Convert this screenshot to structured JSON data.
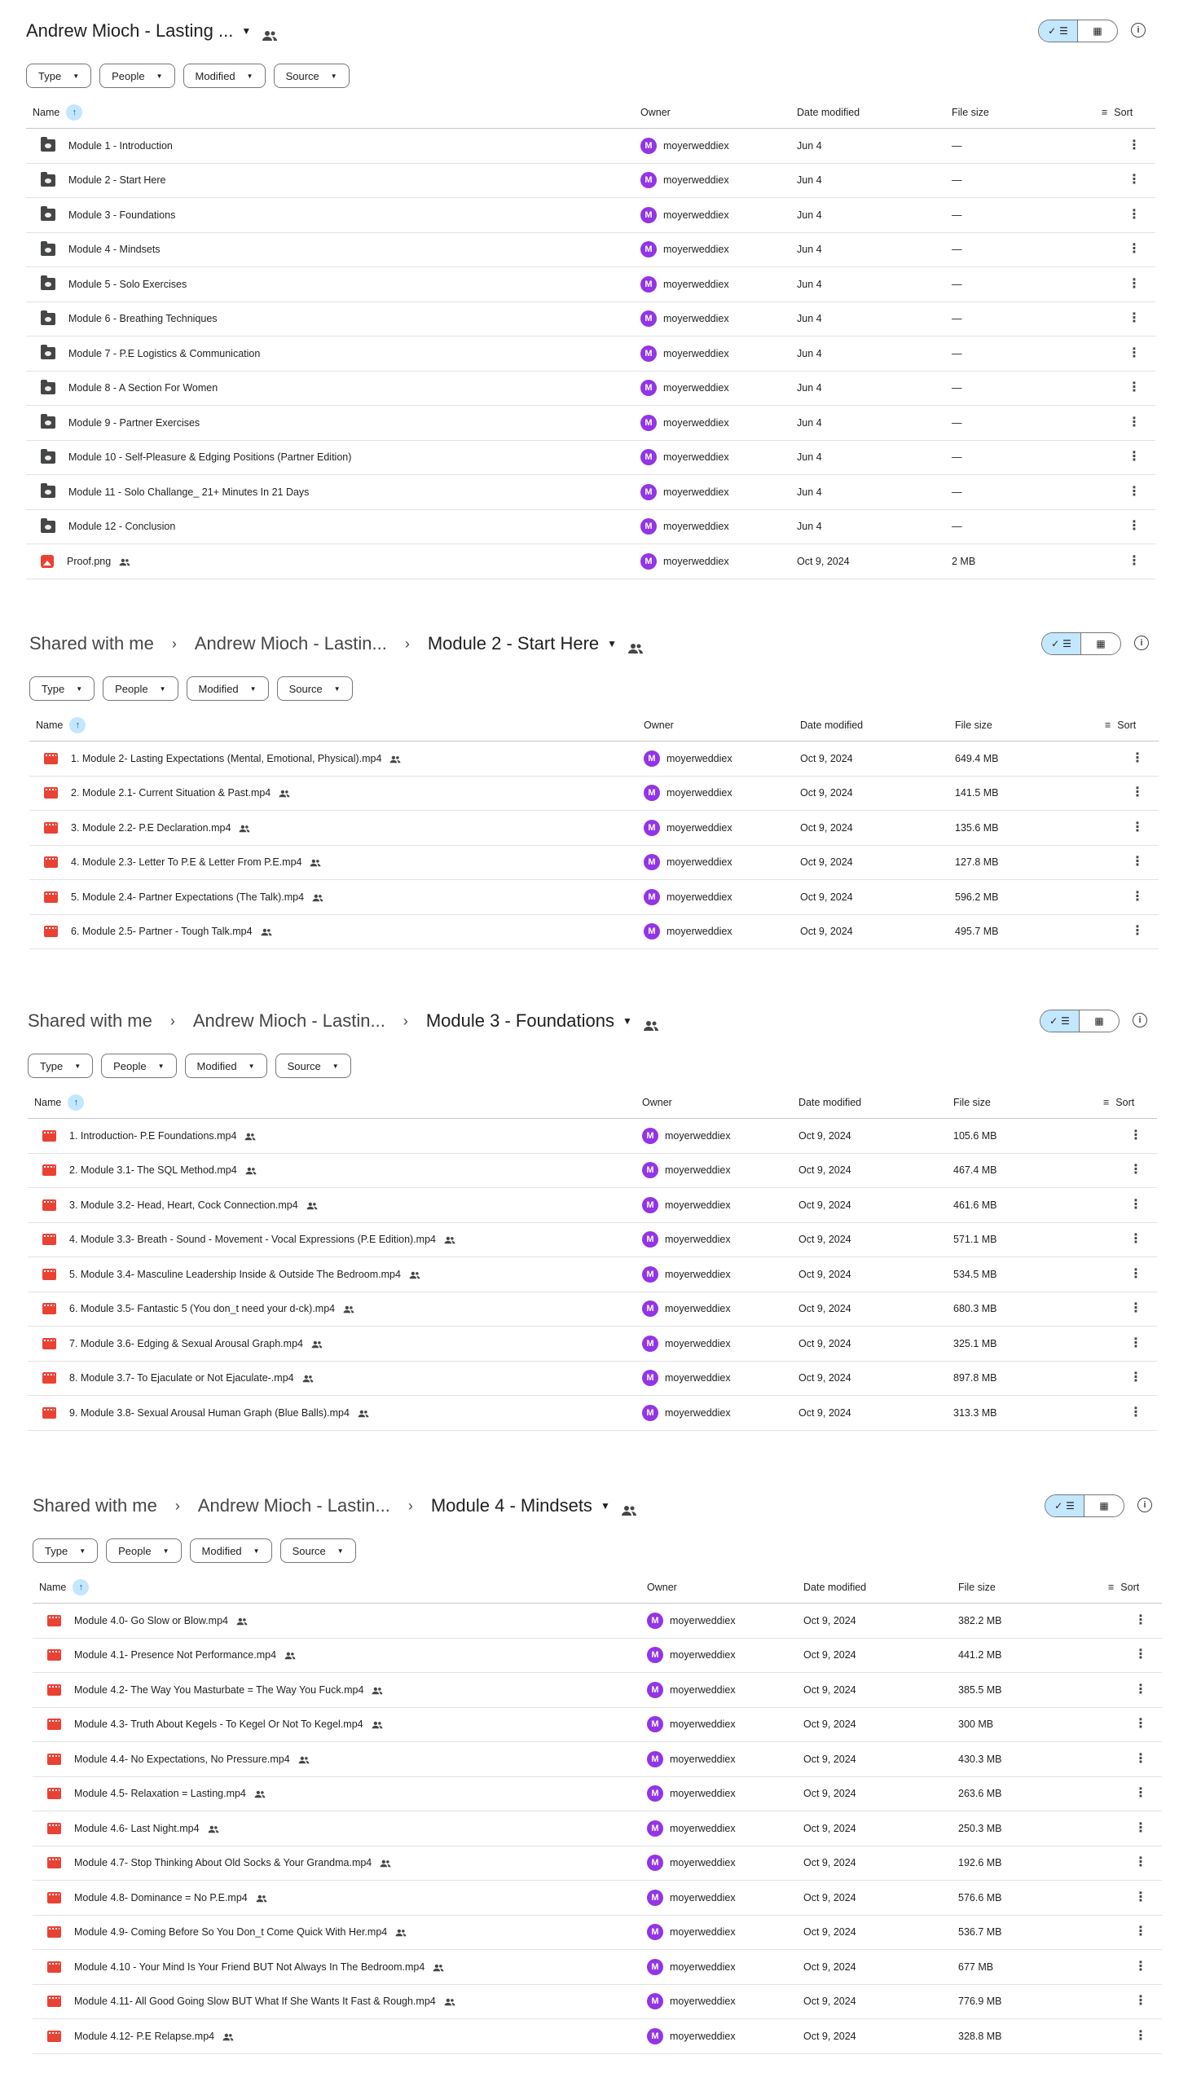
{
  "colors": {
    "accent": "#c2e7ff",
    "avatar": "#9334e6",
    "video": "#e94235",
    "folder": "#444746"
  },
  "filters": [
    "Type",
    "People",
    "Modified",
    "Source"
  ],
  "columns": {
    "name": "Name",
    "owner": "Owner",
    "date": "Date modified",
    "size": "File size",
    "sort": "Sort"
  },
  "panels": [
    {
      "breadcrumb": [],
      "current": "Andrew Mioch - Lasting ...",
      "rows": [
        {
          "icon": "folder-icon",
          "name": "Module 1 - Introduction",
          "shared": false,
          "owner": "moyerweddiex",
          "date": "Jun 4",
          "size": "—"
        },
        {
          "icon": "folder-icon",
          "name": "Module 2 - Start Here",
          "shared": false,
          "owner": "moyerweddiex",
          "date": "Jun 4",
          "size": "—"
        },
        {
          "icon": "folder-icon",
          "name": "Module 3 - Foundations",
          "shared": false,
          "owner": "moyerweddiex",
          "date": "Jun 4",
          "size": "—"
        },
        {
          "icon": "folder-icon",
          "name": "Module 4 - Mindsets",
          "shared": false,
          "owner": "moyerweddiex",
          "date": "Jun 4",
          "size": "—"
        },
        {
          "icon": "folder-icon",
          "name": "Module 5 - Solo Exercises",
          "shared": false,
          "owner": "moyerweddiex",
          "date": "Jun 4",
          "size": "—"
        },
        {
          "icon": "folder-icon",
          "name": "Module 6 - Breathing Techniques",
          "shared": false,
          "owner": "moyerweddiex",
          "date": "Jun 4",
          "size": "—"
        },
        {
          "icon": "folder-icon",
          "name": "Module 7 - P.E Logistics & Communication",
          "shared": false,
          "owner": "moyerweddiex",
          "date": "Jun 4",
          "size": "—"
        },
        {
          "icon": "folder-icon",
          "name": "Module 8 - A Section For Women",
          "shared": false,
          "owner": "moyerweddiex",
          "date": "Jun 4",
          "size": "—"
        },
        {
          "icon": "folder-icon",
          "name": "Module 9 - Partner Exercises",
          "shared": false,
          "owner": "moyerweddiex",
          "date": "Jun 4",
          "size": "—"
        },
        {
          "icon": "folder-icon",
          "name": "Module 10 - Self-Pleasure & Edging Positions (Partner Edition)",
          "shared": false,
          "owner": "moyerweddiex",
          "date": "Jun 4",
          "size": "—"
        },
        {
          "icon": "folder-icon",
          "name": "Module 11 - Solo Challange_ 21+ Minutes In 21 Days",
          "shared": false,
          "owner": "moyerweddiex",
          "date": "Jun 4",
          "size": "—"
        },
        {
          "icon": "folder-icon",
          "name": "Module 12 - Conclusion",
          "shared": false,
          "owner": "moyerweddiex",
          "date": "Jun 4",
          "size": "—"
        },
        {
          "icon": "image-icon",
          "name": "Proof.png",
          "shared": true,
          "owner": "moyerweddiex",
          "date": "Oct 9, 2024",
          "size": "2 MB"
        }
      ]
    },
    {
      "breadcrumb": [
        "Shared with me",
        "Andrew Mioch - Lastin..."
      ],
      "current": "Module 2 - Start Here",
      "rows": [
        {
          "icon": "video-icon",
          "name": "1. Module 2- Lasting Expectations (Mental, Emotional, Physical).mp4",
          "shared": true,
          "owner": "moyerweddiex",
          "date": "Oct 9, 2024",
          "size": "649.4 MB"
        },
        {
          "icon": "video-icon",
          "name": "2. Module 2.1- Current Situation & Past.mp4",
          "shared": true,
          "owner": "moyerweddiex",
          "date": "Oct 9, 2024",
          "size": "141.5 MB"
        },
        {
          "icon": "video-icon",
          "name": "3. Module 2.2- P.E Declaration.mp4",
          "shared": true,
          "owner": "moyerweddiex",
          "date": "Oct 9, 2024",
          "size": "135.6 MB"
        },
        {
          "icon": "video-icon",
          "name": "4. Module 2.3- Letter To P.E & Letter From P.E.mp4",
          "shared": true,
          "owner": "moyerweddiex",
          "date": "Oct 9, 2024",
          "size": "127.8 MB"
        },
        {
          "icon": "video-icon",
          "name": "5. Module 2.4- Partner Expectations (The Talk).mp4",
          "shared": true,
          "owner": "moyerweddiex",
          "date": "Oct 9, 2024",
          "size": "596.2 MB"
        },
        {
          "icon": "video-icon",
          "name": "6. Module 2.5- Partner - Tough Talk.mp4",
          "shared": true,
          "owner": "moyerweddiex",
          "date": "Oct 9, 2024",
          "size": "495.7 MB"
        }
      ]
    },
    {
      "breadcrumb": [
        "Shared with me",
        "Andrew Mioch - Lastin..."
      ],
      "current": "Module 3 - Foundations",
      "rows": [
        {
          "icon": "video-icon",
          "name": "1. Introduction- P.E Foundations.mp4",
          "shared": true,
          "owner": "moyerweddiex",
          "date": "Oct 9, 2024",
          "size": "105.6 MB"
        },
        {
          "icon": "video-icon",
          "name": "2. Module 3.1- The SQL Method.mp4",
          "shared": true,
          "owner": "moyerweddiex",
          "date": "Oct 9, 2024",
          "size": "467.4 MB"
        },
        {
          "icon": "video-icon",
          "name": "3. Module 3.2- Head, Heart, Cock Connection.mp4",
          "shared": true,
          "owner": "moyerweddiex",
          "date": "Oct 9, 2024",
          "size": "461.6 MB"
        },
        {
          "icon": "video-icon",
          "name": "4. Module 3.3- Breath - Sound - Movement - Vocal Expressions (P.E Edition).mp4",
          "shared": true,
          "owner": "moyerweddiex",
          "date": "Oct 9, 2024",
          "size": "571.1 MB"
        },
        {
          "icon": "video-icon",
          "name": "5. Module 3.4- Masculine Leadership Inside & Outside The Bedroom.mp4",
          "shared": true,
          "owner": "moyerweddiex",
          "date": "Oct 9, 2024",
          "size": "534.5 MB"
        },
        {
          "icon": "video-icon",
          "name": "6. Module 3.5- Fantastic 5 (You don_t need your d-ck).mp4",
          "shared": true,
          "owner": "moyerweddiex",
          "date": "Oct 9, 2024",
          "size": "680.3 MB"
        },
        {
          "icon": "video-icon",
          "name": "7. Module 3.6- Edging & Sexual Arousal Graph.mp4",
          "shared": true,
          "owner": "moyerweddiex",
          "date": "Oct 9, 2024",
          "size": "325.1 MB"
        },
        {
          "icon": "video-icon",
          "name": "8. Module 3.7- To Ejaculate or Not Ejaculate-.mp4",
          "shared": true,
          "owner": "moyerweddiex",
          "date": "Oct 9, 2024",
          "size": "897.8 MB"
        },
        {
          "icon": "video-icon",
          "name": "9. Module 3.8- Sexual Arousal Human Graph (Blue Balls).mp4",
          "shared": true,
          "owner": "moyerweddiex",
          "date": "Oct 9, 2024",
          "size": "313.3 MB"
        }
      ]
    },
    {
      "breadcrumb": [
        "Shared with me",
        "Andrew Mioch - Lastin..."
      ],
      "current": "Module 4 - Mindsets",
      "rows": [
        {
          "icon": "video-icon",
          "name": "Module 4.0- Go Slow or Blow.mp4",
          "shared": true,
          "owner": "moyerweddiex",
          "date": "Oct 9, 2024",
          "size": "382.2 MB"
        },
        {
          "icon": "video-icon",
          "name": "Module 4.1- Presence Not Performance.mp4",
          "shared": true,
          "owner": "moyerweddiex",
          "date": "Oct 9, 2024",
          "size": "441.2 MB"
        },
        {
          "icon": "video-icon",
          "name": "Module 4.2- The Way You Masturbate = The Way You Fuck.mp4",
          "shared": true,
          "owner": "moyerweddiex",
          "date": "Oct 9, 2024",
          "size": "385.5 MB"
        },
        {
          "icon": "video-icon",
          "name": "Module 4.3- Truth About Kegels - To Kegel Or Not To Kegel.mp4",
          "shared": true,
          "owner": "moyerweddiex",
          "date": "Oct 9, 2024",
          "size": "300 MB"
        },
        {
          "icon": "video-icon",
          "name": "Module 4.4- No Expectations, No Pressure.mp4",
          "shared": true,
          "owner": "moyerweddiex",
          "date": "Oct 9, 2024",
          "size": "430.3 MB"
        },
        {
          "icon": "video-icon",
          "name": "Module 4.5- Relaxation = Lasting.mp4",
          "shared": true,
          "owner": "moyerweddiex",
          "date": "Oct 9, 2024",
          "size": "263.6 MB"
        },
        {
          "icon": "video-icon",
          "name": "Module 4.6- Last Night.mp4",
          "shared": true,
          "owner": "moyerweddiex",
          "date": "Oct 9, 2024",
          "size": "250.3 MB"
        },
        {
          "icon": "video-icon",
          "name": "Module 4.7- Stop Thinking About Old Socks & Your Grandma.mp4",
          "shared": true,
          "owner": "moyerweddiex",
          "date": "Oct 9, 2024",
          "size": "192.6 MB"
        },
        {
          "icon": "video-icon",
          "name": "Module 4.8- Dominance = No P.E.mp4",
          "shared": true,
          "owner": "moyerweddiex",
          "date": "Oct 9, 2024",
          "size": "576.6 MB"
        },
        {
          "icon": "video-icon",
          "name": "Module 4.9- Coming Before So You Don_t Come Quick With Her.mp4",
          "shared": true,
          "owner": "moyerweddiex",
          "date": "Oct 9, 2024",
          "size": "536.7 MB"
        },
        {
          "icon": "video-icon",
          "name": "Module 4.10 - Your Mind Is Your Friend BUT Not Always In The Bedroom.mp4",
          "shared": true,
          "owner": "moyerweddiex",
          "date": "Oct 9, 2024",
          "size": "677 MB"
        },
        {
          "icon": "video-icon",
          "name": "Module 4.11- All Good Going Slow BUT What If She Wants It Fast & Rough.mp4",
          "shared": true,
          "owner": "moyerweddiex",
          "date": "Oct 9, 2024",
          "size": "776.9 MB"
        },
        {
          "icon": "video-icon",
          "name": "Module 4.12- P.E Relapse.mp4",
          "shared": true,
          "owner": "moyerweddiex",
          "date": "Oct 9, 2024",
          "size": "328.8 MB"
        }
      ]
    }
  ]
}
